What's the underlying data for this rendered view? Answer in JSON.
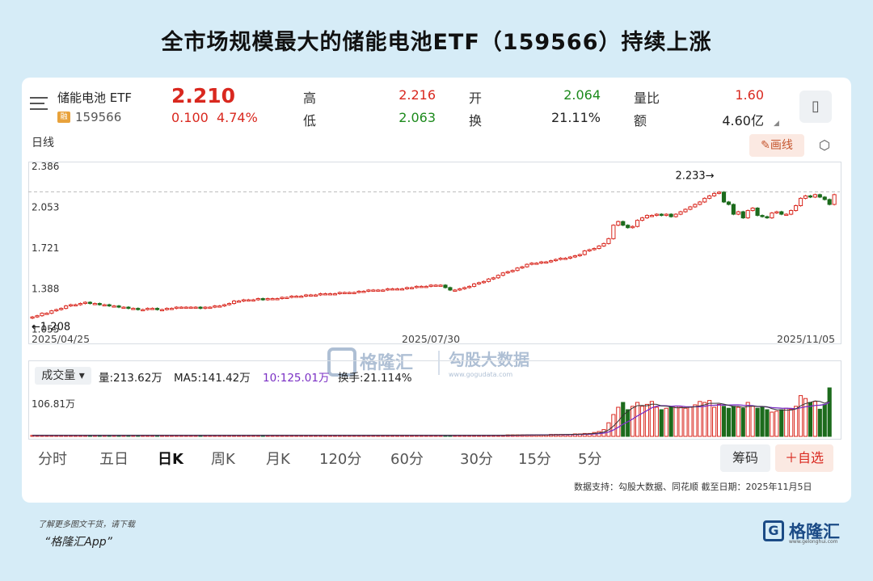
{
  "headline": "全市场规模最大的储能电池ETF（159566）持续上涨",
  "quote": {
    "name": "储能电池 ETF",
    "badge": "融",
    "code": "159566",
    "price": "2.210",
    "change": "0.100",
    "change_pct": "4.74%",
    "high_label": "高",
    "high": "2.216",
    "low_label": "低",
    "low": "2.063",
    "open_label": "开",
    "open": "2.064",
    "turnover_label": "换",
    "turnover": "21.11%",
    "vol_ratio_label": "量比",
    "vol_ratio": "1.60",
    "amount_label": "额",
    "amount": "4.60亿"
  },
  "toolbar": {
    "period_label": "日线",
    "draw_label": "✎画线"
  },
  "colors": {
    "up": "#d9281f",
    "down": "#1c6b1c",
    "ma5": "#333333",
    "ma10": "#7a2fc4"
  },
  "chart_data": [
    {
      "type": "candlestick",
      "title": "",
      "x_labels": [
        "2025/04/25",
        "2025/07/30",
        "2025/11/05"
      ],
      "y_ticks": [
        2.386,
        2.053,
        1.721,
        1.388,
        1.055
      ],
      "ylim": [
        1.0,
        2.48
      ],
      "min_marker": "←1.208",
      "max_marker": "2.233→",
      "max_value": 2.233,
      "closes": [
        1.21,
        1.22,
        1.24,
        1.24,
        1.26,
        1.27,
        1.28,
        1.3,
        1.31,
        1.31,
        1.32,
        1.33,
        1.32,
        1.32,
        1.31,
        1.31,
        1.3,
        1.3,
        1.29,
        1.29,
        1.28,
        1.28,
        1.27,
        1.27,
        1.28,
        1.28,
        1.27,
        1.27,
        1.28,
        1.28,
        1.29,
        1.29,
        1.29,
        1.29,
        1.29,
        1.28,
        1.29,
        1.29,
        1.3,
        1.3,
        1.31,
        1.32,
        1.34,
        1.34,
        1.35,
        1.35,
        1.35,
        1.36,
        1.35,
        1.36,
        1.36,
        1.36,
        1.37,
        1.37,
        1.38,
        1.38,
        1.38,
        1.39,
        1.39,
        1.39,
        1.4,
        1.4,
        1.4,
        1.4,
        1.41,
        1.41,
        1.41,
        1.41,
        1.42,
        1.42,
        1.43,
        1.43,
        1.43,
        1.43,
        1.44,
        1.44,
        1.44,
        1.44,
        1.45,
        1.45,
        1.46,
        1.46,
        1.46,
        1.47,
        1.47,
        1.47,
        1.45,
        1.43,
        1.43,
        1.44,
        1.45,
        1.46,
        1.48,
        1.49,
        1.5,
        1.52,
        1.53,
        1.55,
        1.57,
        1.58,
        1.59,
        1.61,
        1.62,
        1.64,
        1.65,
        1.65,
        1.66,
        1.66,
        1.67,
        1.68,
        1.69,
        1.69,
        1.7,
        1.71,
        1.72,
        1.75,
        1.76,
        1.77,
        1.79,
        1.81,
        1.85,
        1.96,
        1.99,
        1.96,
        1.94,
        1.95,
        2.0,
        2.02,
        2.04,
        2.04,
        2.05,
        2.04,
        2.05,
        2.03,
        2.05,
        2.07,
        2.09,
        2.11,
        2.13,
        2.15,
        2.18,
        2.2,
        2.22,
        2.23,
        2.15,
        2.13,
        2.05,
        2.07,
        2.02,
        2.08,
        2.1,
        2.04,
        2.03,
        2.02,
        2.06,
        2.07,
        2.05,
        2.05,
        2.08,
        2.12,
        2.18,
        2.2,
        2.19,
        2.21,
        2.19,
        2.17,
        2.13,
        2.21
      ],
      "volume_ratio": [
        0.02,
        0.02,
        0.02,
        0.02,
        0.02,
        0.02,
        0.02,
        0.02,
        0.02,
        0.02,
        0.02,
        0.02,
        0.02,
        0.02,
        0.02,
        0.02,
        0.02,
        0.02,
        0.02,
        0.02,
        0.02,
        0.02,
        0.02,
        0.02,
        0.02,
        0.02,
        0.02,
        0.02,
        0.02,
        0.02,
        0.02,
        0.02,
        0.02,
        0.02,
        0.02,
        0.02,
        0.02,
        0.02,
        0.02,
        0.02,
        0.02,
        0.02,
        0.02,
        0.02,
        0.02,
        0.02,
        0.02,
        0.02,
        0.02,
        0.02,
        0.02,
        0.02,
        0.02,
        0.02,
        0.02,
        0.02,
        0.02,
        0.02,
        0.02,
        0.02,
        0.02,
        0.02,
        0.02,
        0.02,
        0.02,
        0.02,
        0.02,
        0.02,
        0.02,
        0.02,
        0.02,
        0.02,
        0.02,
        0.02,
        0.02,
        0.02,
        0.02,
        0.02,
        0.02,
        0.02,
        0.02,
        0.02,
        0.02,
        0.02,
        0.02,
        0.02,
        0.02,
        0.02,
        0.02,
        0.02,
        0.02,
        0.02,
        0.02,
        0.02,
        0.02,
        0.02,
        0.02,
        0.02,
        0.02,
        0.03,
        0.03,
        0.03,
        0.03,
        0.03,
        0.03,
        0.03,
        0.03,
        0.03,
        0.04,
        0.04,
        0.04,
        0.04,
        0.04,
        0.05,
        0.05,
        0.06,
        0.06,
        0.08,
        0.1,
        0.14,
        0.28,
        0.45,
        0.6,
        0.7,
        0.55,
        0.62,
        0.7,
        0.62,
        0.66,
        0.72,
        0.6,
        0.55,
        0.58,
        0.6,
        0.62,
        0.6,
        0.58,
        0.6,
        0.65,
        0.72,
        0.7,
        0.74,
        0.6,
        0.66,
        0.62,
        0.58,
        0.62,
        0.6,
        0.58,
        0.7,
        0.62,
        0.58,
        0.6,
        0.55,
        0.5,
        0.52,
        0.55,
        0.58,
        0.56,
        0.62,
        0.84,
        0.78,
        0.7,
        0.72,
        0.56,
        0.66,
        1.0
      ]
    }
  ],
  "volume": {
    "selector": "成交量 ▾",
    "amount": "量:213.62万",
    "ma5": "MA5:141.42万",
    "ma10": "10:125.01万",
    "turnover": "换手:21.114%",
    "y_label": "106.81万"
  },
  "watermark": {
    "brand": "格隆汇",
    "site": "勾股大数据",
    "url": "www.gogudata.com"
  },
  "tabs": [
    "分时",
    "五日",
    "日K",
    "周K",
    "月K",
    "120分",
    "60分",
    "30分",
    "15分",
    "5分"
  ],
  "buttons": {
    "chip": "筹码",
    "fav": "＋自选"
  },
  "source": "数据支持：勾股大数据、同花顺 截至日期：2025年11月5日",
  "footer": {
    "line1": "了解更多图文干货，请下载",
    "line2": "“格隆汇App”"
  },
  "logo": {
    "text": "格隆汇",
    "sub": "www.gelonghui.com"
  }
}
